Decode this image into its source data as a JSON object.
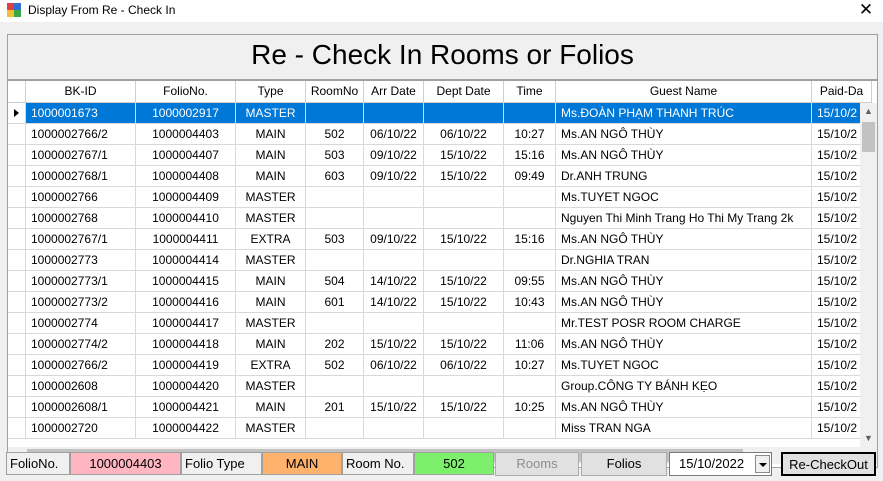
{
  "window": {
    "title": "Display From Re - Check In",
    "close_glyph": "✕"
  },
  "heading": "Re - Check In Rooms or Folios",
  "grid": {
    "columns": [
      "BK-ID",
      "FolioNo.",
      "Type",
      "RoomNo",
      "Arr Date",
      "Dept Date",
      "Time",
      "Guest Name",
      "Paid-Da"
    ],
    "rows": [
      {
        "bkid": "1000001673",
        "folio": "1000002917",
        "type": "MASTER",
        "room": "",
        "arr": "",
        "dept": "",
        "time": "",
        "guest": "Ms.ĐOÀN PHẠM THANH TRÚC",
        "paid": "15/10/2"
      },
      {
        "bkid": "1000002766/2",
        "folio": "1000004403",
        "type": "MAIN",
        "room": "502",
        "arr": "06/10/22",
        "dept": "06/10/22",
        "time": "10:27",
        "guest": "Ms.AN NGÔ THÙY",
        "paid": "15/10/2"
      },
      {
        "bkid": "1000002767/1",
        "folio": "1000004407",
        "type": "MAIN",
        "room": "503",
        "arr": "09/10/22",
        "dept": "15/10/22",
        "time": "15:16",
        "guest": "Ms.AN NGÔ THÙY",
        "paid": "15/10/2"
      },
      {
        "bkid": "1000002768/1",
        "folio": "1000004408",
        "type": "MAIN",
        "room": "603",
        "arr": "09/10/22",
        "dept": "15/10/22",
        "time": "09:49",
        "guest": "Dr.ANH TRUNG",
        "paid": "15/10/2"
      },
      {
        "bkid": "1000002766",
        "folio": "1000004409",
        "type": "MASTER",
        "room": "",
        "arr": "",
        "dept": "",
        "time": "",
        "guest": "Ms.TUYET NGOC",
        "paid": "15/10/2"
      },
      {
        "bkid": "1000002768",
        "folio": "1000004410",
        "type": "MASTER",
        "room": "",
        "arr": "",
        "dept": "",
        "time": "",
        "guest": "Nguyen Thi Minh Trang Ho Thi My Trang 2k",
        "paid": "15/10/2"
      },
      {
        "bkid": "1000002767/1",
        "folio": "1000004411",
        "type": "EXTRA",
        "room": "503",
        "arr": "09/10/22",
        "dept": "15/10/22",
        "time": "15:16",
        "guest": "Ms.AN NGÔ THÙY",
        "paid": "15/10/2"
      },
      {
        "bkid": "1000002773",
        "folio": "1000004414",
        "type": "MASTER",
        "room": "",
        "arr": "",
        "dept": "",
        "time": "",
        "guest": "Dr.NGHIA TRAN",
        "paid": "15/10/2"
      },
      {
        "bkid": "1000002773/1",
        "folio": "1000004415",
        "type": "MAIN",
        "room": "504",
        "arr": "14/10/22",
        "dept": "15/10/22",
        "time": "09:55",
        "guest": "Ms.AN NGÔ THÙY",
        "paid": "15/10/2"
      },
      {
        "bkid": "1000002773/2",
        "folio": "1000004416",
        "type": "MAIN",
        "room": "601",
        "arr": "14/10/22",
        "dept": "15/10/22",
        "time": "10:43",
        "guest": "Ms.AN NGÔ THÙY",
        "paid": "15/10/2"
      },
      {
        "bkid": "1000002774",
        "folio": "1000004417",
        "type": "MASTER",
        "room": "",
        "arr": "",
        "dept": "",
        "time": "",
        "guest": "Mr.TEST POSR ROOM CHARGE",
        "paid": "15/10/2"
      },
      {
        "bkid": "1000002774/2",
        "folio": "1000004418",
        "type": "MAIN",
        "room": "202",
        "arr": "15/10/22",
        "dept": "15/10/22",
        "time": "11:06",
        "guest": "Ms.AN NGÔ THÙY",
        "paid": "15/10/2"
      },
      {
        "bkid": "1000002766/2",
        "folio": "1000004419",
        "type": "EXTRA",
        "room": "502",
        "arr": "06/10/22",
        "dept": "06/10/22",
        "time": "10:27",
        "guest": "Ms.TUYET NGOC",
        "paid": "15/10/2"
      },
      {
        "bkid": "1000002608",
        "folio": "1000004420",
        "type": "MASTER",
        "room": "",
        "arr": "",
        "dept": "",
        "time": "",
        "guest": "Group.CÔNG TY BÁNH KẸO",
        "paid": "15/10/2"
      },
      {
        "bkid": "1000002608/1",
        "folio": "1000004421",
        "type": "MAIN",
        "room": "201",
        "arr": "15/10/22",
        "dept": "15/10/22",
        "time": "10:25",
        "guest": "Ms.AN NGÔ THÙY",
        "paid": "15/10/2"
      },
      {
        "bkid": "1000002720",
        "folio": "1000004422",
        "type": "MASTER",
        "room": "",
        "arr": "",
        "dept": "",
        "time": "",
        "guest": "Miss TRAN NGA",
        "paid": "15/10/2"
      }
    ],
    "selected_row": 0
  },
  "scroll": {
    "up": "▲",
    "down": "▼",
    "left": "<",
    "right": ">"
  },
  "bottom": {
    "folio_label": "FolioNo.",
    "folio_value": "1000004403",
    "folio_type_label": "Folio Type",
    "folio_type_value": "MAIN",
    "room_label": "Room No.",
    "room_value": "502",
    "rooms_button": "Rooms",
    "folios_button": "Folios",
    "date_value": "15/10/2022",
    "recheckout_button": "Re-CheckOut"
  },
  "colors": {
    "selection": "#0078d7",
    "folio_value_bg": "#ffb6c1",
    "folio_type_bg": "#ffb26b",
    "room_value_bg": "#7cf06b"
  }
}
